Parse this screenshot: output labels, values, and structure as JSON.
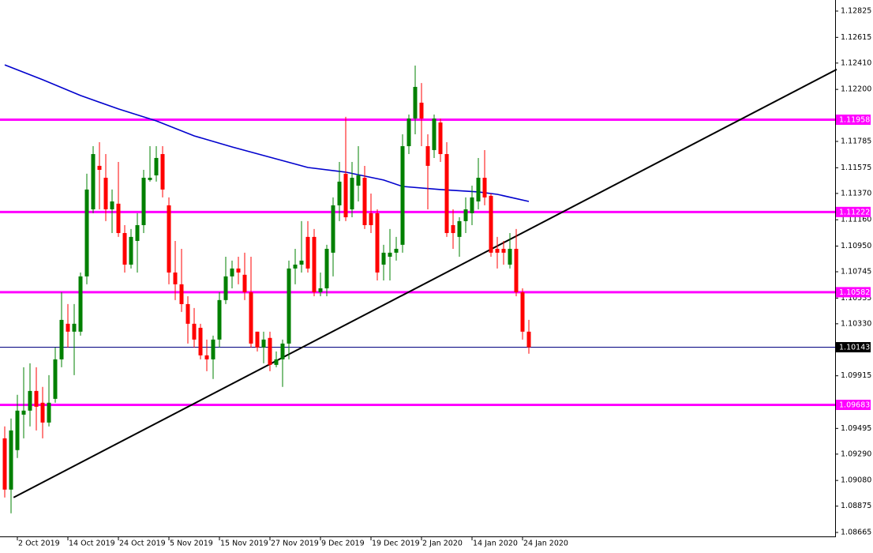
{
  "chart_data": {
    "type": "candlestick",
    "categories": [
      null,
      null,
      "2 Oct 2019",
      null,
      null,
      null,
      null,
      null,
      null,
      null,
      "14 Oct 2019",
      null,
      null,
      null,
      null,
      null,
      null,
      null,
      "24 Oct 2019",
      null,
      null,
      null,
      null,
      null,
      null,
      null,
      "5 Nov 2019",
      null,
      null,
      null,
      null,
      null,
      null,
      null,
      "15 Nov 2019",
      null,
      null,
      null,
      null,
      null,
      null,
      null,
      "27 Nov 2019",
      null,
      null,
      null,
      null,
      null,
      null,
      null,
      "9 Dec 2019",
      null,
      null,
      null,
      null,
      null,
      null,
      null,
      "19 Dec 2019",
      null,
      null,
      null,
      null,
      null,
      null,
      null,
      "2 Jan 2020",
      null,
      null,
      null,
      null,
      null,
      null,
      null,
      "14 Jan 2020",
      null,
      null,
      null,
      null,
      null,
      null,
      null,
      "24 Jan 2020",
      null
    ],
    "open": [
      1.09416,
      1.09007,
      1.09322,
      1.09605,
      1.09637,
      1.09794,
      1.097,
      1.09542,
      1.09731,
      1.10046,
      1.1033,
      1.10267,
      1.10267,
      1.10708,
      1.11243,
      1.1159,
      1.11495,
      1.11243,
      1.11288,
      1.11054,
      1.10802,
      1.10991,
      1.11117,
      1.11477,
      1.11514,
      1.11684,
      1.11275,
      1.10739,
      1.10645,
      1.10487,
      1.1033,
      1.10298,
      1.10078,
      1.10046,
      1.10204,
      1.10519,
      1.10708,
      1.10771,
      1.10721,
      1.10582,
      1.10267,
      1.10141,
      1.10217,
      1.10002,
      1.10046,
      1.10172,
      1.10771,
      1.10802,
      1.11023,
      1.11023,
      1.10582,
      1.10613,
      1.10897,
      1.11275,
      1.11527,
      1.11243,
      1.11432,
      1.11495,
      1.11212,
      1.11212,
      1.10802,
      1.10865,
      1.10897,
      1.1096,
      1.11747,
      1.11968,
      1.12094,
      1.11747,
      1.11716,
      1.11936,
      1.11684,
      1.11117,
      1.11023,
      1.11149,
      1.11212,
      1.11306,
      1.11495,
      1.11351,
      1.10928,
      1.10928,
      1.10802,
      1.10928,
      1.10582,
      1.10267
    ],
    "high": [
      1.09511,
      1.09574,
      1.09763,
      1.09983,
      1.10015,
      1.09983,
      1.09826,
      1.0992,
      1.10141,
      1.10582,
      1.10487,
      1.10487,
      1.10739,
      1.11527,
      1.11747,
      1.11779,
      1.11684,
      1.11401,
      1.11621,
      1.11117,
      1.11086,
      1.11212,
      1.11558,
      1.11747,
      1.11747,
      1.11747,
      1.11338,
      1.10991,
      1.10928,
      1.1055,
      1.10456,
      1.1033,
      1.10204,
      1.10235,
      1.10582,
      1.10865,
      1.10834,
      1.10865,
      1.10897,
      1.10865,
      1.10267,
      1.10267,
      1.10267,
      1.10109,
      1.10204,
      1.10834,
      1.10928,
      1.11149,
      1.11149,
      1.11086,
      1.10739,
      1.1096,
      1.11338,
      1.11621,
      1.11981,
      1.11621,
      1.11747,
      1.1159,
      1.11369,
      1.11243,
      1.1096,
      1.11086,
      1.11023,
      1.11842,
      1.11999,
      1.1239,
      1.12251,
      1.11842,
      1.11999,
      1.11968,
      1.11779,
      1.11243,
      1.1118,
      1.11338,
      1.11432,
      1.11653,
      1.11716,
      1.11369,
      1.11023,
      1.10991,
      1.11054,
      1.11086,
      1.10613,
      1.10361
    ],
    "low": [
      1.08944,
      1.08818,
      1.09259,
      1.09416,
      1.09511,
      1.09479,
      1.09416,
      1.09511,
      1.097,
      1.09983,
      1.10141,
      1.0992,
      1.10235,
      1.10645,
      1.11212,
      1.11243,
      1.11149,
      1.11054,
      1.11023,
      1.10739,
      1.10771,
      1.10739,
      1.11054,
      1.11464,
      1.11464,
      1.11338,
      1.10645,
      1.10519,
      1.10424,
      1.10172,
      1.10141,
      1.10046,
      1.09952,
      1.09889,
      1.10141,
      1.10487,
      1.10613,
      1.10645,
      1.10519,
      1.10141,
      1.10109,
      1.10015,
      1.09952,
      1.09983,
      1.09826,
      1.10046,
      1.10645,
      1.10739,
      1.10739,
      1.1055,
      1.1055,
      1.1055,
      1.10708,
      1.11149,
      1.11149,
      1.1118,
      1.11306,
      1.11086,
      1.11054,
      1.10676,
      1.10676,
      1.10676,
      1.10834,
      1.10897,
      1.11684,
      1.11842,
      1.11747,
      1.11243,
      1.11653,
      1.11621,
      1.11023,
      1.10928,
      1.10865,
      1.11054,
      1.11117,
      1.11243,
      1.11275,
      1.10865,
      1.10771,
      1.10802,
      1.10771,
      1.1055,
      1.10204,
      1.10091
    ],
    "close": [
      1.09007,
      1.09479,
      1.09637,
      1.09637,
      1.09794,
      1.09668,
      1.09542,
      1.097,
      1.10046,
      1.10361,
      1.10267,
      1.1033,
      1.10708,
      1.11401,
      1.11684,
      1.11558,
      1.11243,
      1.11306,
      1.11054,
      1.10802,
      1.11023,
      1.11117,
      1.11495,
      1.11495,
      1.11653,
      1.11401,
      1.10739,
      1.10645,
      1.10487,
      1.1033,
      1.10204,
      1.10078,
      1.10046,
      1.10204,
      1.10519,
      1.10708,
      1.10771,
      1.10739,
      1.10582,
      1.10172,
      1.10141,
      1.10204,
      1.10002,
      1.10046,
      1.10172,
      1.10771,
      1.10802,
      1.10834,
      1.10771,
      1.10582,
      1.10613,
      1.10928,
      1.11275,
      1.11464,
      1.1118,
      1.11495,
      1.11514,
      1.11117,
      1.11117,
      1.10739,
      1.10897,
      1.10897,
      1.10928,
      1.11747,
      1.11968,
      1.1222,
      1.11968,
      1.1159,
      1.11968,
      1.11684,
      1.11054,
      1.11054,
      1.11149,
      1.11243,
      1.11338,
      1.11495,
      1.11338,
      1.10897,
      1.10897,
      1.10897,
      1.10928,
      1.10582,
      1.10267,
      1.10143
    ],
    "up_color": "#008000",
    "down_color": "#ff0000",
    "ma": {
      "color": "#0000cd",
      "x": [
        0,
        6,
        12,
        18,
        24,
        30,
        36,
        42,
        48,
        54,
        60,
        63,
        69,
        75,
        78,
        83
      ],
      "values": [
        1.12396,
        1.12277,
        1.12151,
        1.12044,
        1.11949,
        1.11829,
        1.11741,
        1.11659,
        1.11577,
        1.1154,
        1.11477,
        1.11426,
        1.11401,
        1.11382,
        1.11363,
        1.11306
      ]
    },
    "trendline": {
      "color": "#000000",
      "x": [
        1.4,
        131.75
      ],
      "values": [
        1.08944,
        1.12359
      ]
    },
    "levels": [
      {
        "value": 1.11958,
        "color": "#ff00ff"
      },
      {
        "value": 1.11222,
        "color": "#ff00ff"
      },
      {
        "value": 1.10582,
        "color": "#ff00ff"
      },
      {
        "value": 1.09683,
        "color": "#ff00ff"
      }
    ],
    "price_line": {
      "value": 1.10143,
      "color": "#000080"
    },
    "ylim": [
      1.08665,
      1.12825
    ],
    "yticks": [
      1.12825,
      1.12615,
      {
        "value": 1.1241,
        "label": "1.12410"
      },
      {
        "value": 1.122,
        "label": "1.12200"
      },
      1.11785,
      1.11575,
      {
        "value": 1.1137,
        "label": "1.11370"
      },
      {
        "value": 1.1116,
        "label": "1.11160"
      },
      {
        "value": 1.1095,
        "label": "1.10950"
      },
      1.10745,
      1.10535,
      {
        "value": 1.1033,
        "label": "1.10330"
      },
      1.09915,
      1.09495,
      {
        "value": 1.0929,
        "label": "1.09290"
      },
      {
        "value": 1.0908,
        "label": "1.09080"
      },
      1.08875,
      1.08665
    ]
  }
}
